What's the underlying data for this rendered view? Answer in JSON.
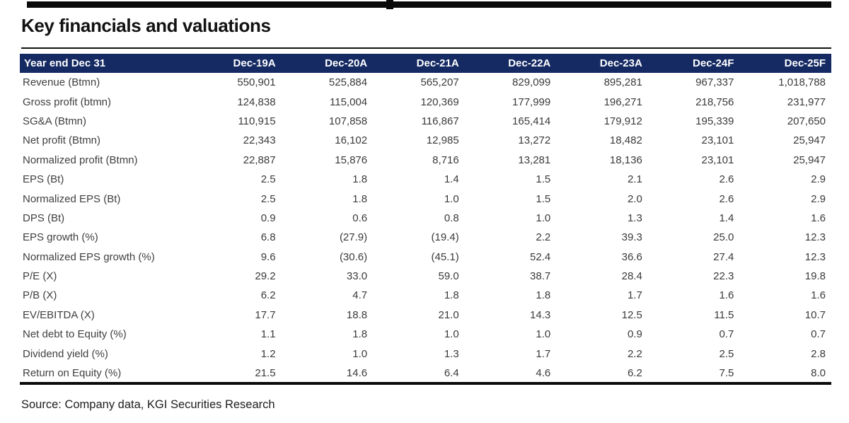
{
  "header": {
    "title": "Key financials and valuations"
  },
  "table": {
    "columns": [
      "Year end Dec 31",
      "Dec-19A",
      "Dec-20A",
      "Dec-21A",
      "Dec-22A",
      "Dec-23A",
      "Dec-24F",
      "Dec-25F"
    ],
    "rows": [
      {
        "label": "Revenue (Btmn)",
        "values": [
          "550,901",
          "525,884",
          "565,207",
          "829,099",
          "895,281",
          "967,337",
          "1,018,788"
        ]
      },
      {
        "label": "Gross profit (btmn)",
        "values": [
          "124,838",
          "115,004",
          "120,369",
          "177,999",
          "196,271",
          "218,756",
          "231,977"
        ]
      },
      {
        "label": "SG&A (Btmn)",
        "values": [
          "110,915",
          "107,858",
          "116,867",
          "165,414",
          "179,912",
          "195,339",
          "207,650"
        ]
      },
      {
        "label": "Net profit (Btmn)",
        "values": [
          "22,343",
          "16,102",
          "12,985",
          "13,272",
          "18,482",
          "23,101",
          "25,947"
        ]
      },
      {
        "label": "Normalized profit (Btmn)",
        "values": [
          "22,887",
          "15,876",
          "8,716",
          "13,281",
          "18,136",
          "23,101",
          "25,947"
        ]
      },
      {
        "label": "EPS (Bt)",
        "values": [
          "2.5",
          "1.8",
          "1.4",
          "1.5",
          "2.1",
          "2.6",
          "2.9"
        ]
      },
      {
        "label": "Normalized EPS (Bt)",
        "values": [
          "2.5",
          "1.8",
          "1.0",
          "1.5",
          "2.0",
          "2.6",
          "2.9"
        ]
      },
      {
        "label": "DPS (Bt)",
        "values": [
          "0.9",
          "0.6",
          "0.8",
          "1.0",
          "1.3",
          "1.4",
          "1.6"
        ]
      },
      {
        "label": "EPS growth (%)",
        "values": [
          "6.8",
          "(27.9)",
          "(19.4)",
          "2.2",
          "39.3",
          "25.0",
          "12.3"
        ]
      },
      {
        "label": "Normalized EPS growth (%)",
        "values": [
          "9.6",
          "(30.6)",
          "(45.1)",
          "52.4",
          "36.6",
          "27.4",
          "12.3"
        ]
      },
      {
        "label": "P/E (X)",
        "values": [
          "29.2",
          "33.0",
          "59.0",
          "38.7",
          "28.4",
          "22.3",
          "19.8"
        ]
      },
      {
        "label": "P/B (X)",
        "values": [
          "6.2",
          "4.7",
          "1.8",
          "1.8",
          "1.7",
          "1.6",
          "1.6"
        ]
      },
      {
        "label": "EV/EBITDA (X)",
        "values": [
          "17.7",
          "18.8",
          "21.0",
          "14.3",
          "12.5",
          "11.5",
          "10.7"
        ]
      },
      {
        "label": "Net debt to Equity (%)",
        "values": [
          "1.1",
          "1.8",
          "1.0",
          "1.0",
          "0.9",
          "0.7",
          "0.7"
        ]
      },
      {
        "label": "Dividend yield (%)",
        "values": [
          "1.2",
          "1.0",
          "1.3",
          "1.7",
          "2.2",
          "2.5",
          "2.8"
        ]
      },
      {
        "label": "Return on Equity (%)",
        "values": [
          "21.5",
          "14.6",
          "6.4",
          "4.6",
          "6.2",
          "7.5",
          "8.0"
        ]
      }
    ]
  },
  "footer": {
    "source": "Source: Company data, KGI Securities Research"
  },
  "colors": {
    "header_bg": "#152a63",
    "header_text": "#ffffff",
    "body_text": "#3a3a3a",
    "rule": "#0a0a0a"
  }
}
